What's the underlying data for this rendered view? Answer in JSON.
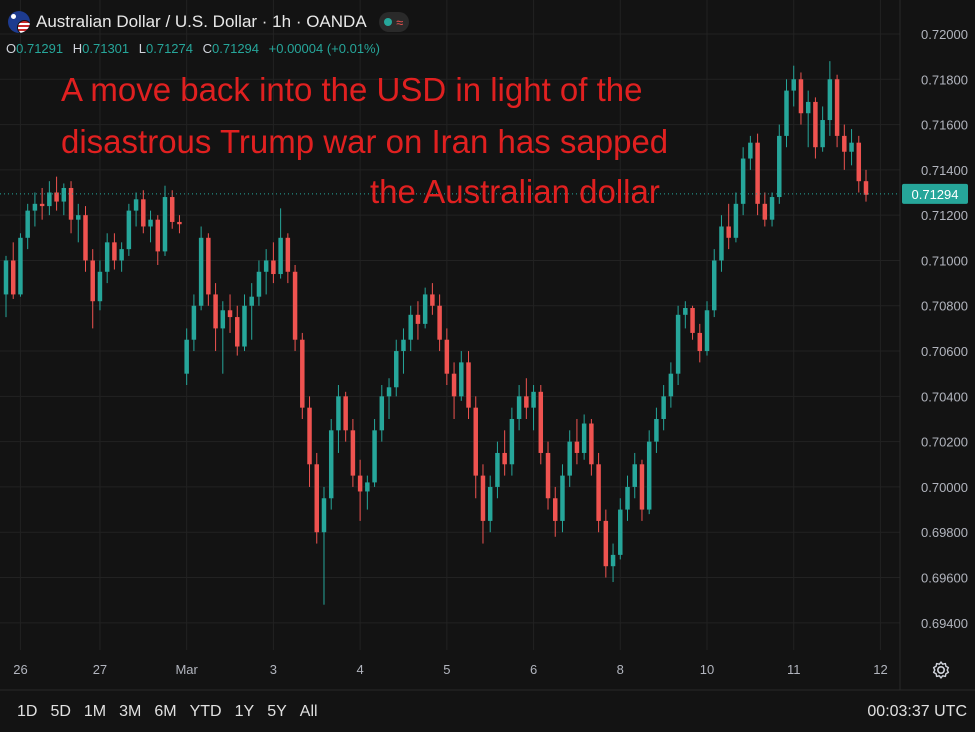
{
  "header": {
    "symbol_title": "Australian Dollar / U.S. Dollar · 1h · OANDA",
    "flag_icon": "aud-usd-flag-icon",
    "status_icon": "market-status-icon"
  },
  "ohlc": {
    "open_label": "O",
    "open": "0.71291",
    "high_label": "H",
    "high": "0.71301",
    "low_label": "L",
    "low": "0.71274",
    "close_label": "C",
    "close": "0.71294",
    "change": "+0.00004 (+0.01%)"
  },
  "annotation": {
    "line1": "A move back into the USD in light of the",
    "line2": "disastrous Trump war on Iran has sapped",
    "line3": "the Australian dollar",
    "color": "#e02020"
  },
  "bottom_bar": {
    "timeframes": [
      "1D",
      "5D",
      "1M",
      "3M",
      "6M",
      "YTD",
      "1Y",
      "5Y",
      "All"
    ],
    "clock": "00:03:37 UTC"
  },
  "colors": {
    "up": "#26a69a",
    "down": "#ef5350",
    "background": "#131313",
    "grid": "#222222"
  },
  "chart_data": {
    "type": "candlestick",
    "symbol": "AUD/USD",
    "interval": "1h",
    "ylim": [
      0.6928,
      0.7215
    ],
    "y_ticks": [
      "0.72000",
      "0.71800",
      "0.71600",
      "0.71400",
      "0.71200",
      "0.71000",
      "0.70800",
      "0.70600",
      "0.70400",
      "0.70200",
      "0.70000",
      "0.69800",
      "0.69600",
      "0.69400"
    ],
    "y_tick_values": [
      0.72,
      0.718,
      0.716,
      0.714,
      0.712,
      0.71,
      0.708,
      0.706,
      0.704,
      0.702,
      0.7,
      0.698,
      0.696,
      0.694
    ],
    "x_tick_labels": [
      "26",
      "27",
      "Mar",
      "3",
      "4",
      "5",
      "6",
      "8",
      "10",
      "11",
      "12"
    ],
    "x_tick_index": [
      2,
      13,
      25,
      37,
      49,
      61,
      73,
      85,
      97,
      109,
      121
    ],
    "last_price": "0.71294",
    "last_price_value": 0.71294,
    "grid": true,
    "candles": [
      [
        0.7085,
        0.7102,
        0.7075,
        0.71
      ],
      [
        0.71,
        0.7108,
        0.7083,
        0.7085
      ],
      [
        0.7085,
        0.7112,
        0.7084,
        0.711
      ],
      [
        0.711,
        0.7125,
        0.7105,
        0.7122
      ],
      [
        0.7122,
        0.713,
        0.7115,
        0.7125
      ],
      [
        0.7125,
        0.7132,
        0.7118,
        0.7124
      ],
      [
        0.7124,
        0.7135,
        0.712,
        0.713
      ],
      [
        0.713,
        0.7137,
        0.7122,
        0.7126
      ],
      [
        0.7126,
        0.7134,
        0.712,
        0.7132
      ],
      [
        0.7132,
        0.7135,
        0.7112,
        0.7118
      ],
      [
        0.7118,
        0.7125,
        0.7108,
        0.712
      ],
      [
        0.712,
        0.7124,
        0.7095,
        0.71
      ],
      [
        0.71,
        0.7105,
        0.707,
        0.7082
      ],
      [
        0.7082,
        0.71,
        0.7078,
        0.7095
      ],
      [
        0.7095,
        0.7112,
        0.709,
        0.7108
      ],
      [
        0.7108,
        0.7112,
        0.7096,
        0.71
      ],
      [
        0.71,
        0.7108,
        0.7095,
        0.7105
      ],
      [
        0.7105,
        0.7125,
        0.7102,
        0.7122
      ],
      [
        0.7122,
        0.713,
        0.7115,
        0.7127
      ],
      [
        0.7127,
        0.7131,
        0.7112,
        0.7115
      ],
      [
        0.7115,
        0.7122,
        0.7108,
        0.7118
      ],
      [
        0.7118,
        0.712,
        0.7098,
        0.7104
      ],
      [
        0.7104,
        0.7133,
        0.7102,
        0.7128
      ],
      [
        0.7128,
        0.7131,
        0.7114,
        0.7117
      ],
      [
        0.7117,
        0.712,
        0.7112,
        0.7116
      ],
      [
        0.705,
        0.707,
        0.7045,
        0.7065
      ],
      [
        0.7065,
        0.7085,
        0.706,
        0.708
      ],
      [
        0.708,
        0.7115,
        0.7078,
        0.711
      ],
      [
        0.711,
        0.7112,
        0.708,
        0.7085
      ],
      [
        0.7085,
        0.709,
        0.706,
        0.707
      ],
      [
        0.707,
        0.7082,
        0.705,
        0.7078
      ],
      [
        0.7078,
        0.7085,
        0.7068,
        0.7075
      ],
      [
        0.7075,
        0.708,
        0.7058,
        0.7062
      ],
      [
        0.7062,
        0.7085,
        0.706,
        0.708
      ],
      [
        0.708,
        0.709,
        0.7065,
        0.7084
      ],
      [
        0.7084,
        0.71,
        0.708,
        0.7095
      ],
      [
        0.7095,
        0.7105,
        0.7085,
        0.71
      ],
      [
        0.71,
        0.7108,
        0.709,
        0.7094
      ],
      [
        0.7094,
        0.7123,
        0.7092,
        0.711
      ],
      [
        0.711,
        0.7112,
        0.709,
        0.7095
      ],
      [
        0.7095,
        0.7098,
        0.706,
        0.7065
      ],
      [
        0.7065,
        0.7068,
        0.703,
        0.7035
      ],
      [
        0.7035,
        0.704,
        0.7,
        0.701
      ],
      [
        0.701,
        0.7015,
        0.6975,
        0.698
      ],
      [
        0.698,
        0.7,
        0.6948,
        0.6995
      ],
      [
        0.6995,
        0.703,
        0.699,
        0.7025
      ],
      [
        0.7025,
        0.7045,
        0.7015,
        0.704
      ],
      [
        0.704,
        0.7042,
        0.702,
        0.7025
      ],
      [
        0.7025,
        0.703,
        0.7,
        0.7005
      ],
      [
        0.7005,
        0.7012,
        0.6985,
        0.6998
      ],
      [
        0.6998,
        0.7005,
        0.699,
        0.7002
      ],
      [
        0.7002,
        0.703,
        0.7,
        0.7025
      ],
      [
        0.7025,
        0.7045,
        0.702,
        0.704
      ],
      [
        0.704,
        0.7048,
        0.703,
        0.7044
      ],
      [
        0.7044,
        0.7065,
        0.704,
        0.706
      ],
      [
        0.706,
        0.707,
        0.705,
        0.7065
      ],
      [
        0.7065,
        0.708,
        0.706,
        0.7076
      ],
      [
        0.7076,
        0.7082,
        0.7065,
        0.7072
      ],
      [
        0.7072,
        0.7088,
        0.707,
        0.7085
      ],
      [
        0.7085,
        0.709,
        0.7076,
        0.708
      ],
      [
        0.708,
        0.7085,
        0.706,
        0.7065
      ],
      [
        0.7065,
        0.707,
        0.7045,
        0.705
      ],
      [
        0.705,
        0.7055,
        0.703,
        0.704
      ],
      [
        0.704,
        0.706,
        0.7038,
        0.7055
      ],
      [
        0.7055,
        0.706,
        0.703,
        0.7035
      ],
      [
        0.7035,
        0.704,
        0.6995,
        0.7005
      ],
      [
        0.7005,
        0.701,
        0.6975,
        0.6985
      ],
      [
        0.6985,
        0.7005,
        0.698,
        0.7
      ],
      [
        0.7,
        0.702,
        0.6995,
        0.7015
      ],
      [
        0.7015,
        0.7025,
        0.7005,
        0.701
      ],
      [
        0.701,
        0.7035,
        0.7005,
        0.703
      ],
      [
        0.703,
        0.7045,
        0.7025,
        0.704
      ],
      [
        0.704,
        0.7048,
        0.703,
        0.7035
      ],
      [
        0.7035,
        0.7045,
        0.7025,
        0.7042
      ],
      [
        0.7042,
        0.7045,
        0.701,
        0.7015
      ],
      [
        0.7015,
        0.702,
        0.699,
        0.6995
      ],
      [
        0.6995,
        0.7,
        0.6978,
        0.6985
      ],
      [
        0.6985,
        0.701,
        0.698,
        0.7005
      ],
      [
        0.7005,
        0.7025,
        0.7,
        0.702
      ],
      [
        0.702,
        0.703,
        0.701,
        0.7015
      ],
      [
        0.7015,
        0.7032,
        0.7012,
        0.7028
      ],
      [
        0.7028,
        0.703,
        0.7005,
        0.701
      ],
      [
        0.701,
        0.7015,
        0.698,
        0.6985
      ],
      [
        0.6985,
        0.699,
        0.696,
        0.6965
      ],
      [
        0.6965,
        0.6975,
        0.6958,
        0.697
      ],
      [
        0.697,
        0.6995,
        0.6968,
        0.699
      ],
      [
        0.699,
        0.7005,
        0.6985,
        0.7
      ],
      [
        0.7,
        0.7015,
        0.6995,
        0.701
      ],
      [
        0.701,
        0.7012,
        0.6985,
        0.699
      ],
      [
        0.699,
        0.7025,
        0.6988,
        0.702
      ],
      [
        0.702,
        0.7035,
        0.7015,
        0.703
      ],
      [
        0.703,
        0.7045,
        0.7025,
        0.704
      ],
      [
        0.704,
        0.7055,
        0.7035,
        0.705
      ],
      [
        0.705,
        0.708,
        0.7045,
        0.7076
      ],
      [
        0.7076,
        0.7082,
        0.707,
        0.7079
      ],
      [
        0.7079,
        0.708,
        0.7065,
        0.7068
      ],
      [
        0.7068,
        0.7072,
        0.7055,
        0.706
      ],
      [
        0.706,
        0.7082,
        0.7058,
        0.7078
      ],
      [
        0.7078,
        0.7105,
        0.7075,
        0.71
      ],
      [
        0.71,
        0.712,
        0.7095,
        0.7115
      ],
      [
        0.7115,
        0.7125,
        0.7105,
        0.711
      ],
      [
        0.711,
        0.713,
        0.7108,
        0.7125
      ],
      [
        0.7125,
        0.715,
        0.712,
        0.7145
      ],
      [
        0.7145,
        0.7155,
        0.714,
        0.7152
      ],
      [
        0.7152,
        0.7156,
        0.712,
        0.7125
      ],
      [
        0.7125,
        0.713,
        0.7115,
        0.7118
      ],
      [
        0.7118,
        0.713,
        0.7115,
        0.7128
      ],
      [
        0.7128,
        0.716,
        0.7125,
        0.7155
      ],
      [
        0.7155,
        0.718,
        0.715,
        0.7175
      ],
      [
        0.7175,
        0.7186,
        0.7168,
        0.718
      ],
      [
        0.718,
        0.7183,
        0.716,
        0.7165
      ],
      [
        0.7165,
        0.7175,
        0.715,
        0.717
      ],
      [
        0.717,
        0.7172,
        0.7145,
        0.715
      ],
      [
        0.715,
        0.7168,
        0.7148,
        0.7162
      ],
      [
        0.7162,
        0.7188,
        0.7155,
        0.718
      ],
      [
        0.718,
        0.7182,
        0.715,
        0.7155
      ],
      [
        0.7155,
        0.716,
        0.714,
        0.7148
      ],
      [
        0.7148,
        0.7158,
        0.7142,
        0.7152
      ],
      [
        0.7152,
        0.7155,
        0.713,
        0.7135
      ],
      [
        0.7135,
        0.714,
        0.7126,
        0.7129
      ]
    ]
  }
}
